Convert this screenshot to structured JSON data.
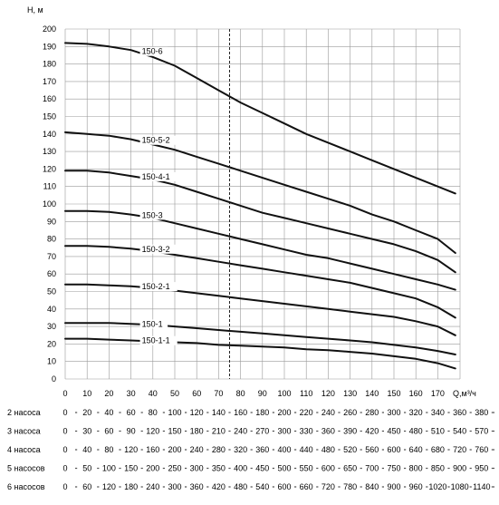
{
  "chart_data": {
    "type": "line",
    "ylabel": "H, м",
    "xlabel": "Q,м³/ч",
    "x_ticks": [
      0,
      10,
      20,
      30,
      40,
      50,
      60,
      70,
      80,
      90,
      100,
      110,
      120,
      130,
      140,
      150,
      160,
      170
    ],
    "y_ticks": [
      0,
      10,
      20,
      30,
      40,
      50,
      60,
      70,
      80,
      90,
      100,
      110,
      120,
      130,
      140,
      150,
      160,
      170,
      180,
      190,
      200
    ],
    "xlim": [
      0,
      185
    ],
    "ylim": [
      0,
      200
    ],
    "grid": true,
    "reference_line_x": 75,
    "series": [
      {
        "name": "150-6",
        "x": [
          0,
          10,
          20,
          30,
          40,
          50,
          60,
          70,
          80,
          90,
          100,
          110,
          120,
          130,
          140,
          150,
          160,
          170,
          178
        ],
        "y": [
          192,
          191.5,
          190,
          188,
          184,
          179,
          172,
          165,
          158,
          152,
          146,
          140,
          135,
          130,
          125,
          120,
          115,
          110,
          106
        ]
      },
      {
        "name": "150-5-2",
        "x": [
          0,
          10,
          20,
          30,
          40,
          50,
          60,
          70,
          80,
          90,
          100,
          110,
          120,
          130,
          140,
          150,
          160,
          170,
          178
        ],
        "y": [
          141,
          140,
          139,
          137,
          134,
          131,
          127,
          123,
          119,
          115,
          111,
          107,
          103,
          99,
          94,
          90,
          85,
          80,
          72
        ]
      },
      {
        "name": "150-4-1",
        "x": [
          0,
          10,
          20,
          30,
          40,
          50,
          60,
          70,
          80,
          90,
          100,
          110,
          120,
          130,
          140,
          150,
          160,
          170,
          178
        ],
        "y": [
          119,
          119,
          118,
          116,
          114,
          111,
          107,
          103,
          99,
          95,
          92,
          89,
          86,
          83,
          80,
          77,
          73,
          68,
          61
        ]
      },
      {
        "name": "150-3",
        "x": [
          0,
          10,
          20,
          30,
          40,
          50,
          60,
          70,
          80,
          90,
          100,
          110,
          120,
          130,
          140,
          150,
          160,
          170,
          178
        ],
        "y": [
          96,
          96,
          95.5,
          94,
          92,
          89,
          86,
          83,
          80,
          77,
          74,
          71,
          69,
          66,
          63,
          60,
          57,
          54,
          51
        ]
      },
      {
        "name": "150-3-2",
        "x": [
          0,
          10,
          20,
          30,
          40,
          50,
          60,
          70,
          80,
          90,
          100,
          110,
          120,
          130,
          140,
          150,
          160,
          170,
          178
        ],
        "y": [
          76,
          76,
          75.5,
          74.5,
          73,
          71,
          69,
          67,
          65,
          63,
          61,
          59,
          57,
          55,
          52,
          49,
          46,
          41,
          35
        ]
      },
      {
        "name": "150-2-1",
        "x": [
          0,
          10,
          20,
          30,
          40,
          50,
          60,
          70,
          80,
          90,
          100,
          110,
          120,
          130,
          140,
          150,
          160,
          170,
          178
        ],
        "y": [
          54,
          54,
          53.5,
          53,
          52,
          50.5,
          49,
          47.5,
          46,
          44.5,
          43,
          41.5,
          40,
          38.5,
          37,
          35.5,
          33,
          30,
          25
        ]
      },
      {
        "name": "150-1",
        "x": [
          0,
          10,
          20,
          30,
          40,
          50,
          60,
          70,
          80,
          90,
          100,
          110,
          120,
          130,
          140,
          150,
          160,
          170,
          178
        ],
        "y": [
          32,
          32,
          32,
          31.5,
          31,
          30,
          29,
          28,
          27,
          26,
          25,
          24,
          23,
          22,
          21,
          19.5,
          18,
          16,
          14
        ]
      },
      {
        "name": "150-1-1",
        "x": [
          0,
          10,
          20,
          30,
          40,
          50,
          60,
          70,
          80,
          90,
          100,
          110,
          120,
          130,
          140,
          150,
          160,
          170,
          178
        ],
        "y": [
          23,
          23,
          22.5,
          22,
          21.5,
          21,
          20.5,
          19.5,
          19,
          18.5,
          18,
          17,
          16.5,
          15.5,
          14.5,
          13,
          11.5,
          9,
          6
        ]
      }
    ],
    "flow_rows": [
      {
        "label": "2 насоса",
        "values": [
          "0",
          "20",
          "40",
          "60",
          "80",
          "100",
          "120",
          "140",
          "160",
          "180",
          "200",
          "220",
          "240",
          "260",
          "280",
          "300",
          "320",
          "340",
          "360",
          "380"
        ]
      },
      {
        "label": "3 насоса",
        "values": [
          "0",
          "30",
          "60",
          "90",
          "120",
          "150",
          "180",
          "210",
          "240",
          "270",
          "300",
          "330",
          "360",
          "390",
          "420",
          "450",
          "480",
          "510",
          "540",
          "570"
        ]
      },
      {
        "label": "4 насоса",
        "values": [
          "0",
          "40",
          "80",
          "120",
          "160",
          "200",
          "240",
          "280",
          "320",
          "360",
          "400",
          "440",
          "480",
          "520",
          "560",
          "600",
          "640",
          "680",
          "720",
          "760"
        ]
      },
      {
        "label": "5 насосов",
        "values": [
          "0",
          "50",
          "100",
          "150",
          "200",
          "250",
          "300",
          "350",
          "400",
          "450",
          "500",
          "550",
          "600",
          "650",
          "700",
          "750",
          "800",
          "850",
          "900",
          "950"
        ]
      },
      {
        "label": "6 насосов",
        "values": [
          "0",
          "60",
          "120",
          "180",
          "240",
          "300",
          "360",
          "420",
          "480",
          "540",
          "600",
          "660",
          "720",
          "780",
          "840",
          "900",
          "960",
          "1020",
          "1080",
          "1140"
        ]
      }
    ]
  }
}
